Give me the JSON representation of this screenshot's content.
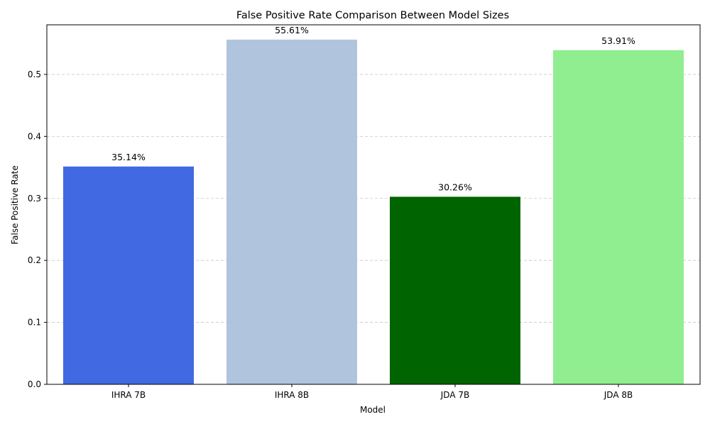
{
  "chart_data": {
    "type": "bar",
    "title": "False Positive Rate Comparison Between Model Sizes",
    "xlabel": "Model",
    "ylabel": "False Positive Rate",
    "categories": [
      "IHRA 7B",
      "IHRA 8B",
      "JDA 7B",
      "JDA 8B"
    ],
    "values": [
      0.3514,
      0.5561,
      0.3026,
      0.5391
    ],
    "data_labels": [
      "35.14%",
      "55.61%",
      "30.26%",
      "53.91%"
    ],
    "colors": [
      "#4169e1",
      "#b0c4de",
      "#006400",
      "#90ee90"
    ],
    "ylim": [
      0,
      0.58
    ],
    "yticks": [
      0.0,
      0.1,
      0.2,
      0.3,
      0.4,
      0.5
    ],
    "ytick_labels": [
      "0.0",
      "0.1",
      "0.2",
      "0.3",
      "0.4",
      "0.5"
    ],
    "grid": "y-dashed",
    "legend": "none"
  }
}
